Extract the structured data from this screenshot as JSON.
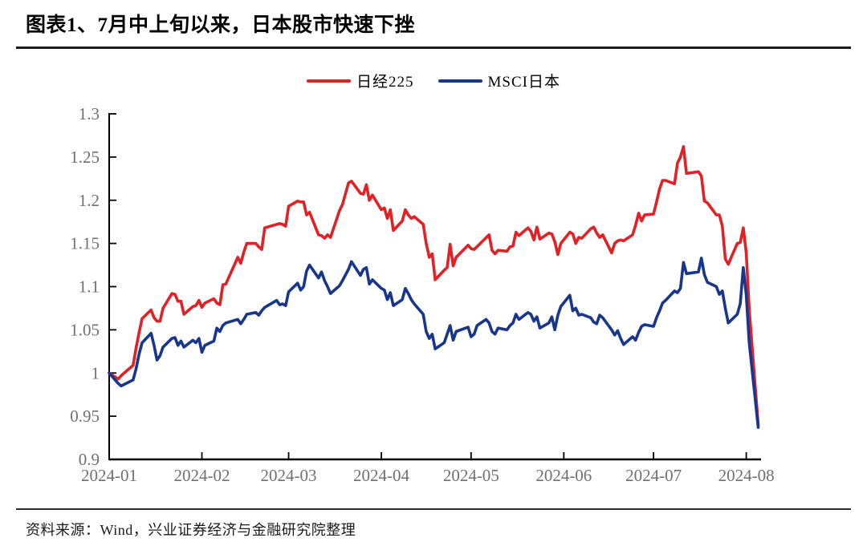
{
  "figure": {
    "title": "图表1、7月中上旬以来，日本股市快速下挫",
    "source": "资料来源：Wind，兴业证券经济与金融研究院整理"
  },
  "legend": {
    "items": [
      {
        "label": "日经225",
        "color": "#e02227"
      },
      {
        "label": "MSCI日本",
        "color": "#17368c"
      }
    ]
  },
  "chart_data": {
    "type": "line",
    "title": "图表1、7月中上旬以来，日本股市快速下挫",
    "grid": false,
    "legend_position": "top",
    "x_axis": {
      "label": "",
      "tick_labels": [
        "2024-01",
        "2024-02",
        "2024-03",
        "2024-04",
        "2024-05",
        "2024-06",
        "2024-07",
        "2024-08"
      ],
      "tick_days": [
        0,
        31,
        60,
        91,
        121,
        152,
        182,
        213
      ],
      "range_days": [
        0,
        218
      ]
    },
    "y_axis": {
      "label": "",
      "ticks": [
        0.9,
        0.95,
        1.0,
        1.05,
        1.1,
        1.15,
        1.2,
        1.25,
        1.3
      ],
      "tick_labels": [
        "0.9",
        "0.95",
        "1",
        "1.05",
        "1.1",
        "1.15",
        "1.2",
        "1.25",
        "1.3"
      ],
      "range": [
        0.9,
        1.3
      ]
    },
    "series": [
      {
        "id": "nikkei225",
        "name": "日经225",
        "color": "#e02227",
        "points": [
          [
            0,
            1.0
          ],
          [
            3,
            0.993
          ],
          [
            4,
            0.997
          ],
          [
            8,
            1.009
          ],
          [
            9,
            1.029
          ],
          [
            10,
            1.047
          ],
          [
            11,
            1.063
          ],
          [
            14,
            1.073
          ],
          [
            15,
            1.064
          ],
          [
            16,
            1.06
          ],
          [
            17,
            1.06
          ],
          [
            18,
            1.075
          ],
          [
            21,
            1.092
          ],
          [
            22,
            1.091
          ],
          [
            23,
            1.083
          ],
          [
            24,
            1.083
          ],
          [
            25,
            1.068
          ],
          [
            28,
            1.077
          ],
          [
            29,
            1.078
          ],
          [
            30,
            1.084
          ],
          [
            31,
            1.076
          ],
          [
            32,
            1.081
          ],
          [
            35,
            1.086
          ],
          [
            36,
            1.081
          ],
          [
            37,
            1.079
          ],
          [
            38,
            1.102
          ],
          [
            39,
            1.103
          ],
          [
            43,
            1.134
          ],
          [
            44,
            1.127
          ],
          [
            45,
            1.14
          ],
          [
            46,
            1.15
          ],
          [
            49,
            1.15
          ],
          [
            50,
            1.146
          ],
          [
            51,
            1.143
          ],
          [
            52,
            1.168
          ],
          [
            56,
            1.172
          ],
          [
            57,
            1.173
          ],
          [
            58,
            1.172
          ],
          [
            59,
            1.17
          ],
          [
            60,
            1.193
          ],
          [
            63,
            1.199
          ],
          [
            64,
            1.198
          ],
          [
            65,
            1.198
          ],
          [
            66,
            1.183
          ],
          [
            67,
            1.186
          ],
          [
            70,
            1.16
          ],
          [
            71,
            1.159
          ],
          [
            72,
            1.156
          ],
          [
            73,
            1.16
          ],
          [
            74,
            1.157
          ],
          [
            77,
            1.188
          ],
          [
            78,
            1.195
          ],
          [
            80,
            1.22
          ],
          [
            81,
            1.222
          ],
          [
            84,
            1.208
          ],
          [
            85,
            1.207
          ],
          [
            86,
            1.218
          ],
          [
            87,
            1.2
          ],
          [
            88,
            1.206
          ],
          [
            91,
            1.189
          ],
          [
            92,
            1.191
          ],
          [
            93,
            1.179
          ],
          [
            94,
            1.189
          ],
          [
            95,
            1.165
          ],
          [
            98,
            1.176
          ],
          [
            99,
            1.189
          ],
          [
            100,
            1.183
          ],
          [
            101,
            1.179
          ],
          [
            102,
            1.181
          ],
          [
            105,
            1.172
          ],
          [
            106,
            1.15
          ],
          [
            107,
            1.134
          ],
          [
            108,
            1.138
          ],
          [
            109,
            1.108
          ],
          [
            112,
            1.119
          ],
          [
            113,
            1.122
          ],
          [
            114,
            1.149
          ],
          [
            115,
            1.124
          ],
          [
            116,
            1.134
          ],
          [
            120,
            1.148
          ],
          [
            121,
            1.144
          ],
          [
            122,
            1.143
          ],
          [
            127,
            1.16
          ],
          [
            128,
            1.142
          ],
          [
            129,
            1.138
          ],
          [
            130,
            1.142
          ],
          [
            133,
            1.141
          ],
          [
            134,
            1.146
          ],
          [
            135,
            1.147
          ],
          [
            136,
            1.163
          ],
          [
            137,
            1.159
          ],
          [
            140,
            1.168
          ],
          [
            141,
            1.164
          ],
          [
            142,
            1.154
          ],
          [
            143,
            1.169
          ],
          [
            144,
            1.155
          ],
          [
            147,
            1.162
          ],
          [
            148,
            1.161
          ],
          [
            149,
            1.152
          ],
          [
            150,
            1.137
          ],
          [
            151,
            1.15
          ],
          [
            154,
            1.163
          ],
          [
            155,
            1.161
          ],
          [
            156,
            1.15
          ],
          [
            157,
            1.157
          ],
          [
            158,
            1.156
          ],
          [
            161,
            1.167
          ],
          [
            162,
            1.169
          ],
          [
            163,
            1.162
          ],
          [
            164,
            1.157
          ],
          [
            165,
            1.16
          ],
          [
            168,
            1.139
          ],
          [
            169,
            1.15
          ],
          [
            170,
            1.153
          ],
          [
            171,
            1.154
          ],
          [
            172,
            1.153
          ],
          [
            175,
            1.16
          ],
          [
            176,
            1.171
          ],
          [
            177,
            1.185
          ],
          [
            178,
            1.176
          ],
          [
            179,
            1.183
          ],
          [
            182,
            1.184
          ],
          [
            183,
            1.198
          ],
          [
            184,
            1.213
          ],
          [
            185,
            1.223
          ],
          [
            186,
            1.223
          ],
          [
            189,
            1.219
          ],
          [
            190,
            1.243
          ],
          [
            191,
            1.25
          ],
          [
            192,
            1.262
          ],
          [
            193,
            1.231
          ],
          [
            197,
            1.233
          ],
          [
            198,
            1.228
          ],
          [
            199,
            1.199
          ],
          [
            200,
            1.197
          ],
          [
            203,
            1.183
          ],
          [
            204,
            1.183
          ],
          [
            205,
            1.17
          ],
          [
            206,
            1.132
          ],
          [
            207,
            1.126
          ],
          [
            210,
            1.15
          ],
          [
            211,
            1.151
          ],
          [
            212,
            1.168
          ],
          [
            213,
            1.139
          ],
          [
            214,
            1.073
          ],
          [
            217,
            0.94
          ]
        ]
      },
      {
        "id": "msci-japan",
        "name": "MSCI日本",
        "color": "#17368c",
        "points": [
          [
            0,
            1.0
          ],
          [
            3,
            0.988
          ],
          [
            4,
            0.985
          ],
          [
            8,
            0.992
          ],
          [
            9,
            1.005
          ],
          [
            10,
            1.022
          ],
          [
            11,
            1.035
          ],
          [
            14,
            1.046
          ],
          [
            15,
            1.032
          ],
          [
            16,
            1.015
          ],
          [
            17,
            1.02
          ],
          [
            18,
            1.03
          ],
          [
            21,
            1.04
          ],
          [
            22,
            1.041
          ],
          [
            23,
            1.032
          ],
          [
            24,
            1.037
          ],
          [
            25,
            1.03
          ],
          [
            28,
            1.038
          ],
          [
            29,
            1.035
          ],
          [
            30,
            1.04
          ],
          [
            31,
            1.024
          ],
          [
            32,
            1.032
          ],
          [
            35,
            1.037
          ],
          [
            36,
            1.052
          ],
          [
            37,
            1.048
          ],
          [
            38,
            1.055
          ],
          [
            39,
            1.058
          ],
          [
            43,
            1.062
          ],
          [
            44,
            1.057
          ],
          [
            45,
            1.062
          ],
          [
            46,
            1.068
          ],
          [
            49,
            1.07
          ],
          [
            50,
            1.067
          ],
          [
            51,
            1.072
          ],
          [
            52,
            1.076
          ],
          [
            56,
            1.084
          ],
          [
            57,
            1.079
          ],
          [
            58,
            1.08
          ],
          [
            59,
            1.078
          ],
          [
            60,
            1.094
          ],
          [
            63,
            1.104
          ],
          [
            64,
            1.096
          ],
          [
            65,
            1.1
          ],
          [
            66,
            1.118
          ],
          [
            67,
            1.125
          ],
          [
            70,
            1.11
          ],
          [
            71,
            1.117
          ],
          [
            72,
            1.107
          ],
          [
            73,
            1.1
          ],
          [
            74,
            1.092
          ],
          [
            77,
            1.101
          ],
          [
            78,
            1.107
          ],
          [
            80,
            1.12
          ],
          [
            81,
            1.129
          ],
          [
            84,
            1.113
          ],
          [
            85,
            1.12
          ],
          [
            86,
            1.122
          ],
          [
            87,
            1.103
          ],
          [
            88,
            1.108
          ],
          [
            91,
            1.098
          ],
          [
            92,
            1.096
          ],
          [
            93,
            1.085
          ],
          [
            94,
            1.093
          ],
          [
            95,
            1.078
          ],
          [
            98,
            1.085
          ],
          [
            99,
            1.098
          ],
          [
            100,
            1.092
          ],
          [
            101,
            1.085
          ],
          [
            102,
            1.08
          ],
          [
            105,
            1.068
          ],
          [
            106,
            1.048
          ],
          [
            107,
            1.04
          ],
          [
            108,
            1.045
          ],
          [
            109,
            1.028
          ],
          [
            112,
            1.035
          ],
          [
            113,
            1.045
          ],
          [
            114,
            1.055
          ],
          [
            115,
            1.038
          ],
          [
            116,
            1.048
          ],
          [
            120,
            1.053
          ],
          [
            121,
            1.042
          ],
          [
            122,
            1.045
          ],
          [
            123,
            1.055
          ],
          [
            126,
            1.062
          ],
          [
            127,
            1.058
          ],
          [
            128,
            1.048
          ],
          [
            129,
            1.045
          ],
          [
            130,
            1.052
          ],
          [
            133,
            1.05
          ],
          [
            134,
            1.055
          ],
          [
            135,
            1.058
          ],
          [
            136,
            1.068
          ],
          [
            137,
            1.062
          ],
          [
            140,
            1.07
          ],
          [
            141,
            1.068
          ],
          [
            142,
            1.06
          ],
          [
            143,
            1.065
          ],
          [
            144,
            1.052
          ],
          [
            147,
            1.058
          ],
          [
            148,
            1.065
          ],
          [
            149,
            1.05
          ],
          [
            150,
            1.067
          ],
          [
            151,
            1.077
          ],
          [
            154,
            1.09
          ],
          [
            155,
            1.072
          ],
          [
            156,
            1.075
          ],
          [
            157,
            1.067
          ],
          [
            158,
            1.068
          ],
          [
            161,
            1.064
          ],
          [
            162,
            1.059
          ],
          [
            163,
            1.057
          ],
          [
            164,
            1.067
          ],
          [
            165,
            1.064
          ],
          [
            168,
            1.05
          ],
          [
            169,
            1.044
          ],
          [
            170,
            1.049
          ],
          [
            171,
            1.04
          ],
          [
            172,
            1.033
          ],
          [
            175,
            1.042
          ],
          [
            176,
            1.038
          ],
          [
            177,
            1.047
          ],
          [
            178,
            1.054
          ],
          [
            179,
            1.056
          ],
          [
            182,
            1.054
          ],
          [
            183,
            1.064
          ],
          [
            184,
            1.072
          ],
          [
            185,
            1.081
          ],
          [
            186,
            1.084
          ],
          [
            189,
            1.095
          ],
          [
            190,
            1.093
          ],
          [
            191,
            1.098
          ],
          [
            192,
            1.128
          ],
          [
            193,
            1.115
          ],
          [
            197,
            1.117
          ],
          [
            198,
            1.133
          ],
          [
            199,
            1.114
          ],
          [
            200,
            1.105
          ],
          [
            203,
            1.1
          ],
          [
            204,
            1.091
          ],
          [
            205,
            1.095
          ],
          [
            206,
            1.075
          ],
          [
            207,
            1.058
          ],
          [
            210,
            1.068
          ],
          [
            211,
            1.08
          ],
          [
            212,
            1.122
          ],
          [
            213,
            1.09
          ],
          [
            214,
            1.035
          ],
          [
            217,
            0.937
          ]
        ]
      }
    ]
  }
}
